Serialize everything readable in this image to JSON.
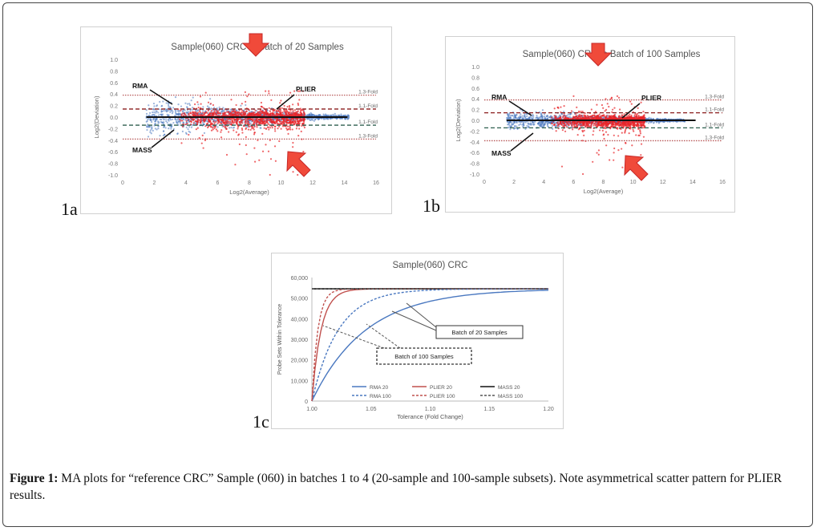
{
  "figure": {
    "caption_label": "Figure 1:",
    "caption_text": " MA plots for “reference CRC” Sample (060) in batches 1 to 4 (20-sample and 100-sample subsets). Note asymmetrical scatter pattern for PLIER results."
  },
  "colors": {
    "rma": "#4a78c0",
    "plier": "#e8252a",
    "mass": "#111111",
    "guide_13": "#b85a5a",
    "guide_11": "#8a1c1c",
    "guide_neg": "#2e5f4f"
  },
  "chart_data": [
    {
      "id": "1a",
      "panel_label": "1a",
      "type": "scatter",
      "title": "Sample(060) CRC in Batch of 20 Samples",
      "xlabel": "Log2(Average)",
      "ylabel": "Log2(Deviation)",
      "xlim": [
        0,
        16
      ],
      "ylim": [
        -1.0,
        1.0
      ],
      "x_ticks": [
        "0",
        "2",
        "4",
        "6",
        "8",
        "10",
        "12",
        "14",
        "16"
      ],
      "y_ticks": [
        "1.0",
        "0.8",
        "0.6",
        "0.4",
        "0.2",
        "0.0",
        "-0.2",
        "-0.4",
        "-0.6",
        "-0.8",
        "-1.0"
      ],
      "reference_lines": [
        {
          "y": 0.38,
          "label": "1.3-Fold"
        },
        {
          "y": 0.14,
          "label": "1.1-Fold"
        },
        {
          "y": -0.14,
          "label": "1.1-Fold"
        },
        {
          "y": -0.38,
          "label": "1.3-Fold"
        }
      ],
      "series": [
        {
          "name": "RMA",
          "x_range": [
            1.5,
            14.3
          ],
          "spread": 0.12
        },
        {
          "name": "PLIER",
          "x_range": [
            3.5,
            11.5
          ],
          "spread": 0.45
        },
        {
          "name": "MASS",
          "x_range": [
            1.5,
            14.2
          ],
          "spread": 0.0
        }
      ],
      "annotations": [
        "RMA",
        "PLIER",
        "MASS"
      ]
    },
    {
      "id": "1b",
      "panel_label": "1b",
      "type": "scatter",
      "title": "Sample(060) CRC in Batch of 100 Samples",
      "xlabel": "Log2(Average)",
      "ylabel": "Log2(Deviation)",
      "xlim": [
        0,
        16
      ],
      "ylim": [
        -1.0,
        1.0
      ],
      "x_ticks": [
        "0",
        "2",
        "4",
        "6",
        "8",
        "10",
        "12",
        "14",
        "16"
      ],
      "y_ticks": [
        "1.0",
        "0.8",
        "0.6",
        "0.4",
        "0.2",
        "0.0",
        "-0.2",
        "-0.4",
        "-0.6",
        "-0.8",
        "-1.0"
      ],
      "reference_lines": [
        {
          "y": 0.38,
          "label": "1.3-Fold"
        },
        {
          "y": 0.14,
          "label": "1.1-Fold"
        },
        {
          "y": -0.14,
          "label": "1.1-Fold"
        },
        {
          "y": -0.38,
          "label": "1.3-Fold"
        }
      ],
      "series": [
        {
          "name": "RMA",
          "x_range": [
            1.5,
            13.5
          ],
          "spread": 0.07
        },
        {
          "name": "PLIER",
          "x_range": [
            4.5,
            10.8
          ],
          "spread": 0.35
        },
        {
          "name": "MASS",
          "x_range": [
            1.5,
            14.2
          ],
          "spread": 0.0
        }
      ],
      "annotations": [
        "RMA",
        "PLIER",
        "MASS"
      ]
    },
    {
      "id": "1c",
      "panel_label": "1c",
      "type": "line",
      "title": "Sample(060) CRC",
      "xlabel": "Tolerance (Fold Change)",
      "ylabel": "Probe Sets Within Tolerance",
      "xlim": [
        1.0,
        1.2
      ],
      "ylim": [
        0,
        60000
      ],
      "x_ticks": [
        "1.00",
        "1.05",
        "1.10",
        "1.15",
        "1.20"
      ],
      "y_ticks": [
        "60,000",
        "50,000",
        "40,000",
        "30,000",
        "20,000",
        "10,000",
        "0"
      ],
      "plateau": 54500,
      "series": [
        {
          "name": "RMA 20",
          "k": 22,
          "style": "solid",
          "color": "#4a78c0"
        },
        {
          "name": "PLIER 20",
          "k": 130,
          "style": "solid",
          "color": "#c0504d"
        },
        {
          "name": "MASS 20",
          "k": 0,
          "style": "solid",
          "color": "#111111"
        },
        {
          "name": "RMA 100",
          "k": 45,
          "style": "dashed",
          "color": "#4a78c0"
        },
        {
          "name": "PLIER 100",
          "k": 200,
          "style": "dashed",
          "color": "#c0504d"
        },
        {
          "name": "MASS 100",
          "k": 0,
          "style": "dashed",
          "color": "#555555"
        }
      ],
      "legend_position": "bottom",
      "annotations": [
        "Batch of 20 Samples",
        "Batch of 100 Samples"
      ]
    }
  ]
}
